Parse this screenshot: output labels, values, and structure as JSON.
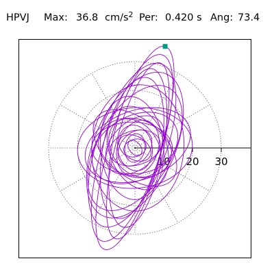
{
  "header": {
    "station": "HPVJ",
    "max_label": "Max:",
    "max_value": "36.8",
    "max_unit": "cm/s",
    "max_unit_exp": "2",
    "per_label": "Per:",
    "per_value": "0.420 s",
    "ang_label": "Ang:",
    "ang_value": "73.4"
  },
  "chart_data": {
    "type": "scatter",
    "subtype": "polar particle-motion hodogram",
    "title": "",
    "radial_ticks": [
      "10",
      "20",
      "30"
    ],
    "radial_tick_values": [
      10,
      20,
      30
    ],
    "grid_radii": [
      10,
      20,
      30
    ],
    "grid_style": "dotted",
    "axis": {
      "x_range": [
        -36.8,
        36.8
      ],
      "y_range": [
        -36.8,
        36.8
      ]
    },
    "series": [
      {
        "line_color": "#9400d3",
        "peak_marker": {
          "x": 10.5,
          "y": 35.3,
          "magnitude": 36.8,
          "color": "#009980",
          "shape": "square"
        },
        "loops": [
          {
            "major": 36.8,
            "minor": 9.0,
            "angle_deg": 73.4,
            "cx": 0,
            "cy": 0
          },
          {
            "major": 34.0,
            "minor": 10.0,
            "angle_deg": 72,
            "cx": -1,
            "cy": 0
          },
          {
            "major": 31.5,
            "minor": 8.0,
            "angle_deg": 76,
            "cx": 1,
            "cy": -1
          },
          {
            "major": 30.0,
            "minor": 12.0,
            "angle_deg": 70,
            "cx": -1,
            "cy": 1
          },
          {
            "major": 28.0,
            "minor": 9.0,
            "angle_deg": 80,
            "cx": 1,
            "cy": 0
          },
          {
            "major": 27.0,
            "minor": 14.0,
            "angle_deg": 66,
            "cx": 0,
            "cy": 1
          },
          {
            "major": 25.0,
            "minor": 10.0,
            "angle_deg": 78,
            "cx": -1,
            "cy": 0
          },
          {
            "major": 24.0,
            "minor": 13.0,
            "angle_deg": 60,
            "cx": 0,
            "cy": 0
          },
          {
            "major": 22.0,
            "minor": 16.0,
            "angle_deg": 85,
            "cx": 1,
            "cy": 0
          },
          {
            "major": 20.0,
            "minor": 14.0,
            "angle_deg": 5,
            "cx": 0,
            "cy": 0
          },
          {
            "major": 19.0,
            "minor": 12.0,
            "angle_deg": 20,
            "cx": 1,
            "cy": 1
          },
          {
            "major": 18.0,
            "minor": 11.0,
            "angle_deg": 95,
            "cx": -1,
            "cy": 0
          },
          {
            "major": 17.0,
            "minor": 10.0,
            "angle_deg": 140,
            "cx": 0,
            "cy": 0
          },
          {
            "major": 16.0,
            "minor": 11.0,
            "angle_deg": 30,
            "cx": 0,
            "cy": 0
          },
          {
            "major": 15.0,
            "minor": 10.0,
            "angle_deg": 110,
            "cx": 1,
            "cy": 0
          },
          {
            "major": 14.0,
            "minor": 9.0,
            "angle_deg": 0,
            "cx": -1,
            "cy": 0
          },
          {
            "major": 13.0,
            "minor": 10.0,
            "angle_deg": 160,
            "cx": 0,
            "cy": 0
          },
          {
            "major": 12.0,
            "minor": 8.0,
            "angle_deg": 45,
            "cx": 0,
            "cy": 1
          },
          {
            "major": 11.0,
            "minor": 8.0,
            "angle_deg": 125,
            "cx": 0,
            "cy": 0
          },
          {
            "major": 10.0,
            "minor": 7.0,
            "angle_deg": 70,
            "cx": 1,
            "cy": 0
          },
          {
            "major": 9.0,
            "minor": 6.0,
            "angle_deg": 15,
            "cx": 0,
            "cy": 0
          },
          {
            "major": 8.0,
            "minor": 6.0,
            "angle_deg": 100,
            "cx": 0,
            "cy": 0
          },
          {
            "major": 7.0,
            "minor": 5.0,
            "angle_deg": 50,
            "cx": 0,
            "cy": 0
          },
          {
            "major": 6.0,
            "minor": 4.0,
            "angle_deg": 150,
            "cx": 0,
            "cy": 0
          },
          {
            "major": 5.0,
            "minor": 3.5,
            "angle_deg": 80,
            "cx": 0,
            "cy": 0
          },
          {
            "major": 4.0,
            "minor": 3.0,
            "angle_deg": 20,
            "cx": 0,
            "cy": 0
          },
          {
            "major": 3.0,
            "minor": 2.0,
            "angle_deg": 130,
            "cx": 0,
            "cy": 0
          }
        ]
      }
    ]
  }
}
